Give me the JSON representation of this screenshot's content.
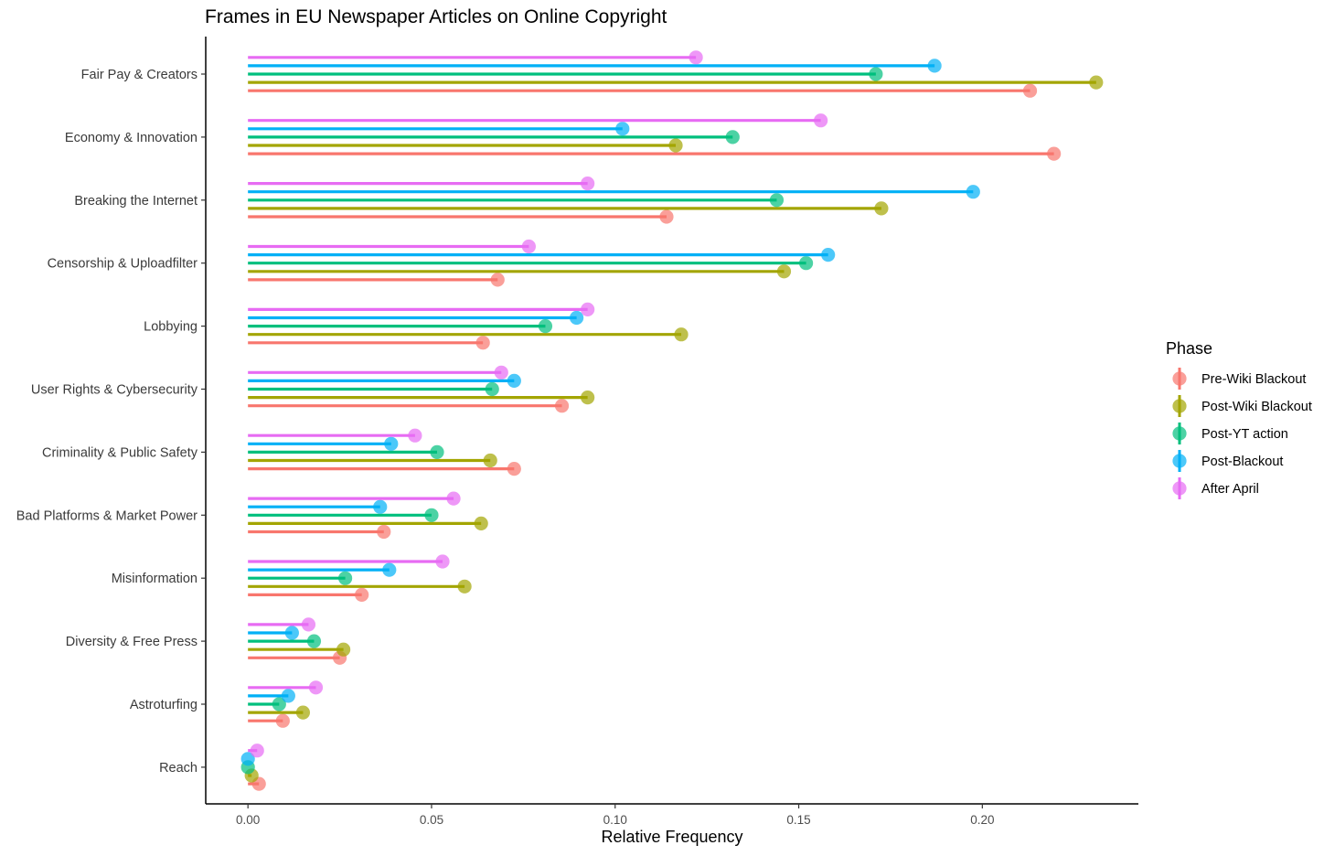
{
  "chart_data": {
    "type": "lollipop",
    "title": "Frames in EU Newspaper Articles on Online Copyright",
    "xlabel": "Relative Frequency",
    "ylabel": "",
    "xlim": [
      -0.0115,
      0.2425
    ],
    "xticks": [
      0.0,
      0.05,
      0.1,
      0.15,
      0.2
    ],
    "xtick_labels": [
      "0.00",
      "0.05",
      "0.10",
      "0.15",
      "0.20"
    ],
    "grid": false,
    "legend": {
      "title": "Phase",
      "position": "right"
    },
    "categories": [
      "Fair Pay & Creators",
      "Economy & Innovation",
      "Breaking the Internet",
      "Censorship & Uploadfilter",
      "Lobbying",
      "User Rights & Cybersecurity",
      "Criminality & Public Safety",
      "Bad Platforms & Market Power",
      "Misinformation",
      "Diversity & Free Press",
      "Astroturfing",
      "Reach"
    ],
    "series": [
      {
        "name": "Pre-Wiki Blackout",
        "color": "#F8766D",
        "values": [
          0.213,
          0.2195,
          0.114,
          0.068,
          0.064,
          0.0855,
          0.0725,
          0.037,
          0.031,
          0.025,
          0.0095,
          0.003
        ]
      },
      {
        "name": "Post-Wiki Blackout",
        "color": "#A3A500",
        "values": [
          0.231,
          0.1165,
          0.1725,
          0.146,
          0.118,
          0.0925,
          0.066,
          0.0635,
          0.059,
          0.026,
          0.015,
          0.001
        ]
      },
      {
        "name": "Post-YT action",
        "color": "#00BF7D",
        "values": [
          0.171,
          0.132,
          0.144,
          0.152,
          0.081,
          0.0665,
          0.0515,
          0.05,
          0.0265,
          0.018,
          0.0085,
          0.0
        ]
      },
      {
        "name": "Post-Blackout",
        "color": "#00B0F6",
        "values": [
          0.187,
          0.102,
          0.1975,
          0.158,
          0.0895,
          0.0725,
          0.039,
          0.036,
          0.0385,
          0.012,
          0.011,
          0.0
        ]
      },
      {
        "name": "After April",
        "color": "#E76BF3",
        "values": [
          0.122,
          0.156,
          0.0925,
          0.0765,
          0.0925,
          0.069,
          0.0455,
          0.056,
          0.053,
          0.0165,
          0.0185,
          0.0025
        ]
      }
    ]
  }
}
